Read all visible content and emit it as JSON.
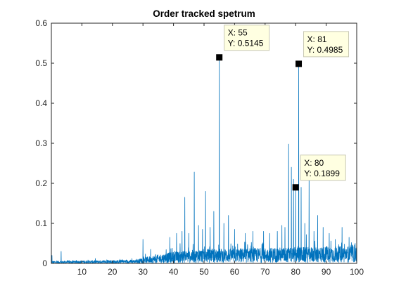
{
  "chart_data": {
    "type": "line",
    "title": "Order tracked spetrum",
    "xlabel": "",
    "ylabel": "",
    "xlim": [
      0,
      100
    ],
    "ylim": [
      0,
      0.6
    ],
    "x_ticks": [
      10,
      20,
      30,
      40,
      50,
      60,
      70,
      80,
      90,
      100
    ],
    "y_ticks": [
      0,
      0.1,
      0.2,
      0.3,
      0.4,
      0.5,
      0.6
    ],
    "x_tick_labels": [
      "10",
      "20",
      "30",
      "40",
      "50",
      "60",
      "70",
      "80",
      "90",
      "100"
    ],
    "y_tick_labels": [
      "0",
      "0.1",
      "0.2",
      "0.3",
      "0.4",
      "0.5",
      "0.6"
    ],
    "grid": false,
    "line_color": "#0072BD",
    "background_noise": [
      {
        "x": 0,
        "level": 0.003
      },
      {
        "x": 28,
        "level": 0.005
      },
      {
        "x": 30,
        "level": 0.008
      },
      {
        "x": 40,
        "level": 0.016
      },
      {
        "x": 50,
        "level": 0.02
      },
      {
        "x": 75,
        "level": 0.022
      },
      {
        "x": 100,
        "level": 0.024
      }
    ],
    "series": [
      {
        "values_peaks": [
          {
            "x": 0.2,
            "y": 0.02
          },
          {
            "x": 3.2,
            "y": 0.03
          },
          {
            "x": 30,
            "y": 0.06
          },
          {
            "x": 32.5,
            "y": 0.035
          },
          {
            "x": 38.8,
            "y": 0.065
          },
          {
            "x": 41,
            "y": 0.075
          },
          {
            "x": 42.8,
            "y": 0.08
          },
          {
            "x": 43.7,
            "y": 0.165
          },
          {
            "x": 45,
            "y": 0.075
          },
          {
            "x": 46.8,
            "y": 0.228
          },
          {
            "x": 48.2,
            "y": 0.095
          },
          {
            "x": 49.5,
            "y": 0.085
          },
          {
            "x": 50.5,
            "y": 0.18
          },
          {
            "x": 52,
            "y": 0.09
          },
          {
            "x": 53.2,
            "y": 0.13
          },
          {
            "x": 55,
            "y": 0.5145
          },
          {
            "x": 56.5,
            "y": 0.1
          },
          {
            "x": 58,
            "y": 0.12
          },
          {
            "x": 60,
            "y": 0.085
          },
          {
            "x": 63.5,
            "y": 0.075
          },
          {
            "x": 66,
            "y": 0.08
          },
          {
            "x": 69.5,
            "y": 0.08
          },
          {
            "x": 71.5,
            "y": 0.075
          },
          {
            "x": 74,
            "y": 0.08
          },
          {
            "x": 75.5,
            "y": 0.095
          },
          {
            "x": 76.5,
            "y": 0.09
          },
          {
            "x": 77.7,
            "y": 0.298
          },
          {
            "x": 78.6,
            "y": 0.24
          },
          {
            "x": 79.3,
            "y": 0.21
          },
          {
            "x": 80,
            "y": 0.1899
          },
          {
            "x": 81,
            "y": 0.4985
          },
          {
            "x": 81.8,
            "y": 0.19
          },
          {
            "x": 83,
            "y": 0.1
          },
          {
            "x": 84.4,
            "y": 0.22
          },
          {
            "x": 86,
            "y": 0.08
          },
          {
            "x": 87.2,
            "y": 0.12
          },
          {
            "x": 89,
            "y": 0.09
          },
          {
            "x": 91,
            "y": 0.075
          },
          {
            "x": 93,
            "y": 0.06
          },
          {
            "x": 95.2,
            "y": 0.09
          },
          {
            "x": 97.5,
            "y": 0.065
          },
          {
            "x": 99.5,
            "y": 0.05
          }
        ]
      }
    ],
    "datatips": [
      {
        "x": 55,
        "y": 0.5145,
        "line1": "X: 55",
        "line2": "Y: 0.5145",
        "position": "above-right"
      },
      {
        "x": 81,
        "y": 0.4985,
        "line1": "X: 81",
        "line2": "Y: 0.4985",
        "position": "above-right"
      },
      {
        "x": 80,
        "y": 0.1899,
        "line1": "X: 80",
        "line2": "Y: 0.1899",
        "position": "above-right"
      }
    ]
  }
}
